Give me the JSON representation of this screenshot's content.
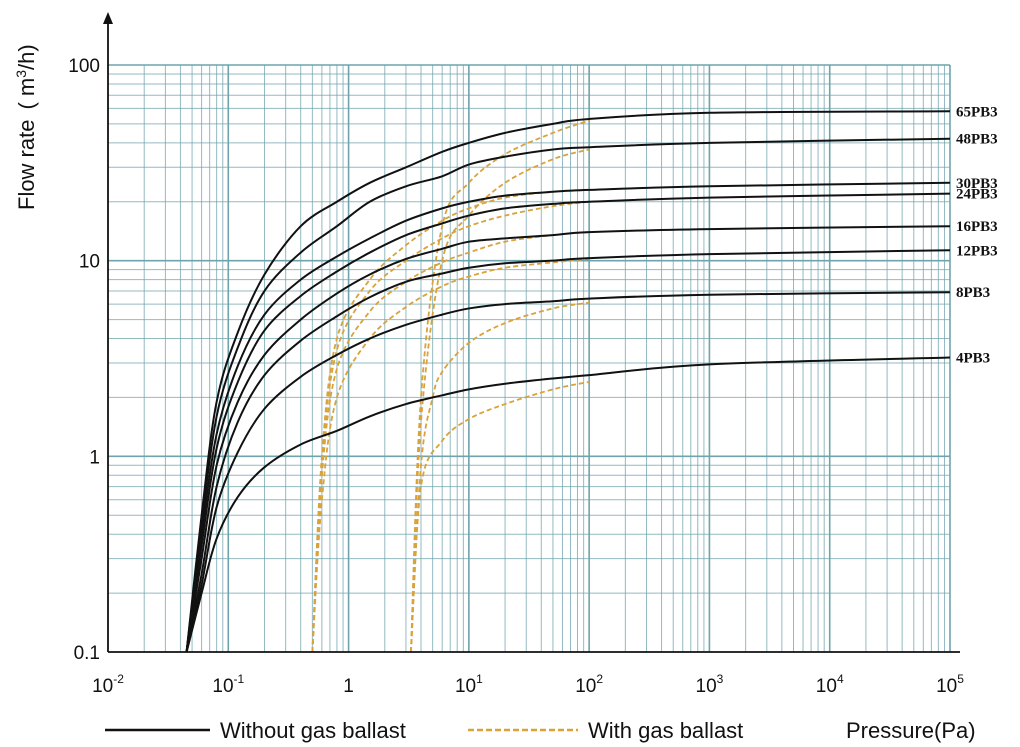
{
  "chart_data": {
    "type": "line",
    "x_scale": "log",
    "y_scale": "log",
    "xlim": [
      0.01,
      100000
    ],
    "ylim": [
      0.1,
      100
    ],
    "grid": true,
    "ylabel_text": "Flow rate",
    "ylabel_unit_open": "( m",
    "ylabel_unit_sup": "3",
    "ylabel_unit_close": "/h)",
    "xlabel": "Pressure(Pa)",
    "x_ticks": [
      {
        "base": "10",
        "exp": "-2"
      },
      {
        "base": "10",
        "exp": "-1"
      },
      {
        "base": "1",
        "exp": ""
      },
      {
        "base": "10",
        "exp": "1"
      },
      {
        "base": "10",
        "exp": "2"
      },
      {
        "base": "10",
        "exp": "3"
      },
      {
        "base": "10",
        "exp": "4"
      },
      {
        "base": "10",
        "exp": "5"
      }
    ],
    "y_ticks": [
      "0.1",
      "1",
      "10",
      "100"
    ],
    "legend": {
      "placement": "bottom",
      "without": "Without gas ballast",
      "with": "With gas ballast"
    },
    "colors": {
      "without": "#111111",
      "with": "#d9a23a",
      "grid": "#6fa3ad",
      "axis": "#111111"
    },
    "series": [
      {
        "name": "65PB3",
        "without": [
          [
            0.045,
            0.1
          ],
          [
            0.06,
            0.5
          ],
          [
            0.08,
            1.9
          ],
          [
            0.12,
            4.3
          ],
          [
            0.2,
            8.5
          ],
          [
            0.4,
            15
          ],
          [
            0.8,
            20
          ],
          [
            1.5,
            25
          ],
          [
            3,
            30
          ],
          [
            6,
            36
          ],
          [
            10,
            40
          ],
          [
            20,
            45
          ],
          [
            50,
            50
          ],
          [
            100,
            53
          ],
          [
            1000,
            57
          ],
          [
            100000,
            58
          ]
        ],
        "with": [
          [
            3.3,
            0.1
          ],
          [
            4,
            2
          ],
          [
            6,
            15
          ],
          [
            10,
            25
          ],
          [
            20,
            35
          ],
          [
            50,
            45
          ],
          [
            100,
            52
          ]
        ]
      },
      {
        "name": "48PB3",
        "without": [
          [
            0.045,
            0.1
          ],
          [
            0.06,
            0.45
          ],
          [
            0.08,
            1.6
          ],
          [
            0.12,
            3.6
          ],
          [
            0.2,
            7
          ],
          [
            0.4,
            11
          ],
          [
            0.8,
            15
          ],
          [
            1.5,
            20
          ],
          [
            3,
            24
          ],
          [
            6,
            27
          ],
          [
            10,
            31
          ],
          [
            20,
            34
          ],
          [
            50,
            37
          ],
          [
            100,
            38
          ],
          [
            1000,
            40
          ],
          [
            100000,
            42
          ]
        ],
        "with": [
          [
            3.3,
            0.1
          ],
          [
            4,
            1.5
          ],
          [
            6,
            10
          ],
          [
            10,
            17
          ],
          [
            20,
            25
          ],
          [
            50,
            33
          ],
          [
            100,
            37
          ]
        ]
      },
      {
        "name": "30PB3",
        "without": [
          [
            0.045,
            0.1
          ],
          [
            0.06,
            0.4
          ],
          [
            0.08,
            1.3
          ],
          [
            0.12,
            2.9
          ],
          [
            0.2,
            5.3
          ],
          [
            0.4,
            8
          ],
          [
            0.8,
            10.5
          ],
          [
            1.5,
            13
          ],
          [
            3,
            16
          ],
          [
            6,
            18.5
          ],
          [
            10,
            20
          ],
          [
            20,
            21.5
          ],
          [
            50,
            22.5
          ],
          [
            100,
            23
          ],
          [
            1000,
            24
          ],
          [
            100000,
            25
          ]
        ],
        "with": [
          [
            0.5,
            0.1
          ],
          [
            0.6,
            1
          ],
          [
            0.8,
            4
          ],
          [
            1.5,
            8
          ],
          [
            3,
            12
          ],
          [
            6,
            16
          ],
          [
            10,
            18.5
          ],
          [
            20,
            21
          ],
          [
            50,
            22.5
          ],
          [
            100,
            23
          ]
        ]
      },
      {
        "name": "24PB3",
        "without": [
          [
            0.045,
            0.1
          ],
          [
            0.06,
            0.35
          ],
          [
            0.08,
            1.1
          ],
          [
            0.12,
            2.4
          ],
          [
            0.2,
            4.4
          ],
          [
            0.4,
            6.6
          ],
          [
            0.8,
            8.8
          ],
          [
            1.5,
            11
          ],
          [
            3,
            13.5
          ],
          [
            6,
            15.5
          ],
          [
            10,
            17
          ],
          [
            20,
            18.5
          ],
          [
            50,
            19.5
          ],
          [
            100,
            20
          ],
          [
            1000,
            21
          ],
          [
            100000,
            22
          ]
        ],
        "with": [
          [
            0.5,
            0.1
          ],
          [
            0.6,
            0.9
          ],
          [
            0.8,
            3.5
          ],
          [
            1.5,
            7
          ],
          [
            3,
            10
          ],
          [
            6,
            13
          ],
          [
            10,
            15
          ],
          [
            20,
            17
          ],
          [
            50,
            19
          ],
          [
            100,
            20
          ]
        ]
      },
      {
        "name": "16PB3",
        "without": [
          [
            0.045,
            0.1
          ],
          [
            0.06,
            0.3
          ],
          [
            0.08,
            0.9
          ],
          [
            0.12,
            1.9
          ],
          [
            0.2,
            3.3
          ],
          [
            0.4,
            5
          ],
          [
            0.8,
            6.8
          ],
          [
            1.5,
            8.5
          ],
          [
            3,
            10.2
          ],
          [
            6,
            11.5
          ],
          [
            10,
            12.5
          ],
          [
            20,
            13
          ],
          [
            50,
            13.5
          ],
          [
            100,
            14
          ],
          [
            1000,
            14.5
          ],
          [
            100000,
            15
          ]
        ],
        "with": [
          [
            0.5,
            0.1
          ],
          [
            0.6,
            0.8
          ],
          [
            0.8,
            2.8
          ],
          [
            1.5,
            5.5
          ],
          [
            3,
            7.8
          ],
          [
            6,
            9.8
          ],
          [
            10,
            11
          ],
          [
            20,
            12.5
          ],
          [
            50,
            13.5
          ],
          [
            100,
            14
          ]
        ]
      },
      {
        "name": "12PB3",
        "without": [
          [
            0.045,
            0.1
          ],
          [
            0.06,
            0.25
          ],
          [
            0.08,
            0.7
          ],
          [
            0.12,
            1.5
          ],
          [
            0.2,
            2.6
          ],
          [
            0.4,
            3.9
          ],
          [
            0.8,
            5.2
          ],
          [
            1.5,
            6.5
          ],
          [
            3,
            7.8
          ],
          [
            6,
            8.6
          ],
          [
            10,
            9.2
          ],
          [
            20,
            9.7
          ],
          [
            50,
            10
          ],
          [
            100,
            10.3
          ],
          [
            1000,
            10.8
          ],
          [
            100000,
            11.3
          ]
        ],
        "with": [
          [
            0.5,
            0.1
          ],
          [
            0.6,
            0.6
          ],
          [
            0.8,
            2
          ],
          [
            1.5,
            4
          ],
          [
            3,
            5.8
          ],
          [
            6,
            7.4
          ],
          [
            10,
            8.3
          ],
          [
            20,
            9.2
          ],
          [
            50,
            9.8
          ],
          [
            100,
            10.2
          ]
        ]
      },
      {
        "name": "8PB3",
        "without": [
          [
            0.045,
            0.1
          ],
          [
            0.06,
            0.22
          ],
          [
            0.08,
            0.55
          ],
          [
            0.12,
            1.05
          ],
          [
            0.2,
            1.75
          ],
          [
            0.4,
            2.55
          ],
          [
            0.8,
            3.3
          ],
          [
            1.5,
            4
          ],
          [
            3,
            4.7
          ],
          [
            6,
            5.3
          ],
          [
            10,
            5.7
          ],
          [
            20,
            6
          ],
          [
            50,
            6.2
          ],
          [
            100,
            6.4
          ],
          [
            1000,
            6.7
          ],
          [
            100000,
            6.9
          ]
        ],
        "with": [
          [
            3.3,
            0.1
          ],
          [
            4,
            0.9
          ],
          [
            5,
            2
          ],
          [
            6,
            2.7
          ],
          [
            10,
            3.8
          ],
          [
            20,
            4.8
          ],
          [
            50,
            5.7
          ],
          [
            100,
            6.1
          ]
        ]
      },
      {
        "name": "4PB3",
        "without": [
          [
            0.045,
            0.1
          ],
          [
            0.06,
            0.2
          ],
          [
            0.08,
            0.38
          ],
          [
            0.12,
            0.62
          ],
          [
            0.2,
            0.88
          ],
          [
            0.4,
            1.15
          ],
          [
            0.8,
            1.35
          ],
          [
            1.5,
            1.6
          ],
          [
            3,
            1.85
          ],
          [
            6,
            2.05
          ],
          [
            10,
            2.2
          ],
          [
            20,
            2.35
          ],
          [
            50,
            2.5
          ],
          [
            100,
            2.6
          ],
          [
            1000,
            2.95
          ],
          [
            100000,
            3.2
          ]
        ],
        "with": [
          [
            3.3,
            0.1
          ],
          [
            4,
            0.7
          ],
          [
            6,
            1.2
          ],
          [
            10,
            1.55
          ],
          [
            20,
            1.85
          ],
          [
            50,
            2.2
          ],
          [
            100,
            2.4
          ]
        ]
      }
    ]
  }
}
